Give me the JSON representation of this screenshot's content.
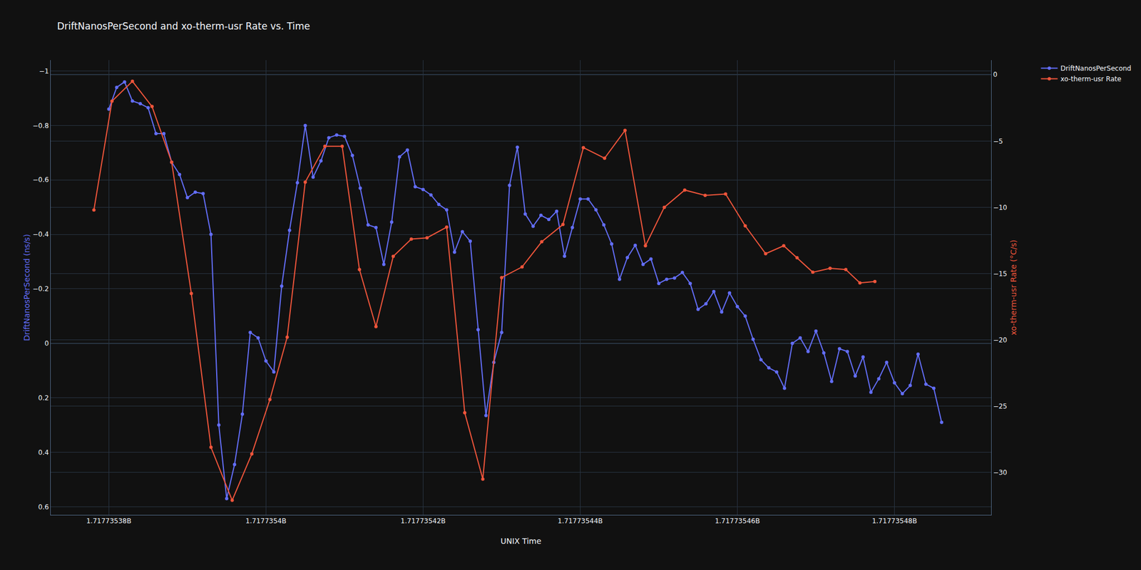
{
  "chart_data": {
    "type": "line",
    "title": "DriftNanosPerSecond and xo-therm-usr Rate vs. Time",
    "x_label": "UNIX Time",
    "y_label": "DriftNanosPerSecond (ns/s)",
    "y2_label": "xo-therm-usr Rate (°C/s)",
    "xlim": [
      1717735372.6,
      1717735492.3
    ],
    "xticks": [
      {
        "value": 1717735380,
        "label": "1.71773538B"
      },
      {
        "value": 1717735400,
        "label": "1.7177354B"
      },
      {
        "value": 1717735420,
        "label": "1.71773542B"
      },
      {
        "value": 1717735440,
        "label": "1.71773544B"
      },
      {
        "value": 1717735460,
        "label": "1.71773546B"
      },
      {
        "value": 1717735480,
        "label": "1.71773548B"
      }
    ],
    "ylim": [
      0.63,
      -1.04
    ],
    "yticks": [
      -1,
      -0.8,
      -0.6,
      -0.4,
      -0.2,
      0,
      0.2,
      0.4,
      0.6
    ],
    "y2lim": [
      -33.2,
      1.1
    ],
    "y2ticks": [
      0,
      -5,
      -10,
      -15,
      -20,
      -25,
      -30
    ],
    "grid": true,
    "legend": "top right",
    "series": [
      {
        "name": "DriftNanosPerSecond",
        "color": "#636efa",
        "marker": "circle",
        "axis": "y",
        "x": [
          1717735380,
          1717735381,
          1717735382,
          1717735383,
          1717735384,
          1717735385,
          1717735386,
          1717735387,
          1717735388,
          1717735389,
          1717735390,
          1717735391,
          1717735392,
          1717735393,
          1717735394,
          1717735395,
          1717735396,
          1717735397,
          1717735398,
          1717735399,
          1717735400,
          1717735401,
          1717735402,
          1717735403,
          1717735404,
          1717735405,
          1717735406,
          1717735407,
          1717735408,
          1717735409,
          1717735410,
          1717735411,
          1717735412,
          1717735413,
          1717735414,
          1717735415,
          1717735416,
          1717735417,
          1717735418,
          1717735419,
          1717735420,
          1717735421,
          1717735422,
          1717735423,
          1717735424,
          1717735425,
          1717735426,
          1717735427,
          1717735428,
          1717735429,
          1717735430,
          1717735431,
          1717735432,
          1717735433,
          1717735434,
          1717735435,
          1717735436,
          1717735437,
          1717735438,
          1717735439,
          1717735440,
          1717735441,
          1717735442,
          1717735443,
          1717735444,
          1717735445,
          1717735446,
          1717735447,
          1717735448,
          1717735449,
          1717735450,
          1717735451,
          1717735452,
          1717735453,
          1717735454,
          1717735455,
          1717735456,
          1717735457,
          1717735458,
          1717735459,
          1717735460,
          1717735461,
          1717735462,
          1717735463,
          1717735464,
          1717735465,
          1717735466,
          1717735467,
          1717735468,
          1717735469,
          1717735470,
          1717735471,
          1717735472,
          1717735473,
          1717735474,
          1717735475,
          1717735476,
          1717735477,
          1717735478,
          1717735479,
          1717735480,
          1717735481,
          1717735482,
          1717735483,
          1717735484,
          1717735485,
          1717735486
        ],
        "values": [
          -0.86,
          -0.94,
          -0.96,
          -0.89,
          -0.88,
          -0.865,
          -0.77,
          -0.77,
          -0.665,
          -0.62,
          -0.535,
          -0.555,
          -0.55,
          -0.4,
          0.3,
          0.57,
          0.445,
          0.26,
          -0.04,
          -0.02,
          0.065,
          0.105,
          -0.21,
          -0.415,
          -0.59,
          -0.8,
          -0.61,
          -0.67,
          -0.755,
          -0.765,
          -0.76,
          -0.69,
          -0.57,
          -0.435,
          -0.425,
          -0.29,
          -0.445,
          -0.685,
          -0.71,
          -0.575,
          -0.565,
          -0.545,
          -0.51,
          -0.49,
          -0.335,
          -0.41,
          -0.375,
          -0.05,
          0.265,
          0.07,
          -0.04,
          -0.58,
          -0.72,
          -0.475,
          -0.43,
          -0.47,
          -0.455,
          -0.485,
          -0.32,
          -0.425,
          -0.53,
          -0.53,
          -0.49,
          -0.435,
          -0.365,
          -0.235,
          -0.315,
          -0.36,
          -0.29,
          -0.31,
          -0.22,
          -0.235,
          -0.24,
          -0.26,
          -0.22,
          -0.125,
          -0.145,
          -0.19,
          -0.115,
          -0.185,
          -0.135,
          -0.1,
          -0.015,
          0.06,
          0.09,
          0.105,
          0.165,
          0,
          -0.02,
          0.03,
          -0.045,
          0.035,
          0.14,
          0.02,
          0.03,
          0.12,
          0.05,
          0.18,
          0.13,
          0.07,
          0.145,
          0.185,
          0.155,
          0.04,
          0.15,
          0.165,
          0.29
        ]
      },
      {
        "name": "xo-therm-usr Rate",
        "color": "#EF553B",
        "marker": "circle",
        "axis": "y2",
        "x": [
          1717735378.1,
          1717735380.4,
          1717735383.0,
          1717735385.5,
          1717735388.0,
          1717735390.5,
          1717735393.0,
          1717735395.7,
          1717735398.2,
          1717735400.5,
          1717735402.7,
          1717735405.0,
          1717735407.5,
          1717735409.7,
          1717735411.9,
          1717735414.0,
          1717735416.2,
          1717735418.5,
          1717735420.5,
          1717735423.0,
          1717735425.3,
          1717735427.6,
          1717735430.0,
          1717735432.6,
          1717735435.1,
          1717735437.8,
          1717735440.4,
          1717735443.1,
          1717735445.7,
          1717735448.3,
          1717735450.7,
          1717735453.3,
          1717735455.9,
          1717735458.5,
          1717735461.0,
          1717735463.6,
          1717735465.9,
          1717735467.6,
          1717735469.6,
          1717735471.8,
          1717735473.8,
          1717735475.6,
          1717735477.5
        ],
        "values": [
          -10.2,
          -2.0,
          -0.5,
          -2.4,
          -6.6,
          -16.5,
          -28.1,
          -32.1,
          -28.6,
          -24.5,
          -19.8,
          -8.1,
          -5.4,
          -5.4,
          -14.7,
          -19.0,
          -13.7,
          -12.4,
          -12.3,
          -11.5,
          -25.5,
          -30.5,
          -15.3,
          -14.5,
          -12.6,
          -11.3,
          -5.5,
          -6.3,
          -4.2,
          -12.9,
          -10.0,
          -8.7,
          -9.1,
          -9.0,
          -11.4,
          -13.5,
          -12.9,
          -13.8,
          -14.9,
          -14.6,
          -14.7,
          -15.7,
          -15.6
        ]
      }
    ]
  }
}
